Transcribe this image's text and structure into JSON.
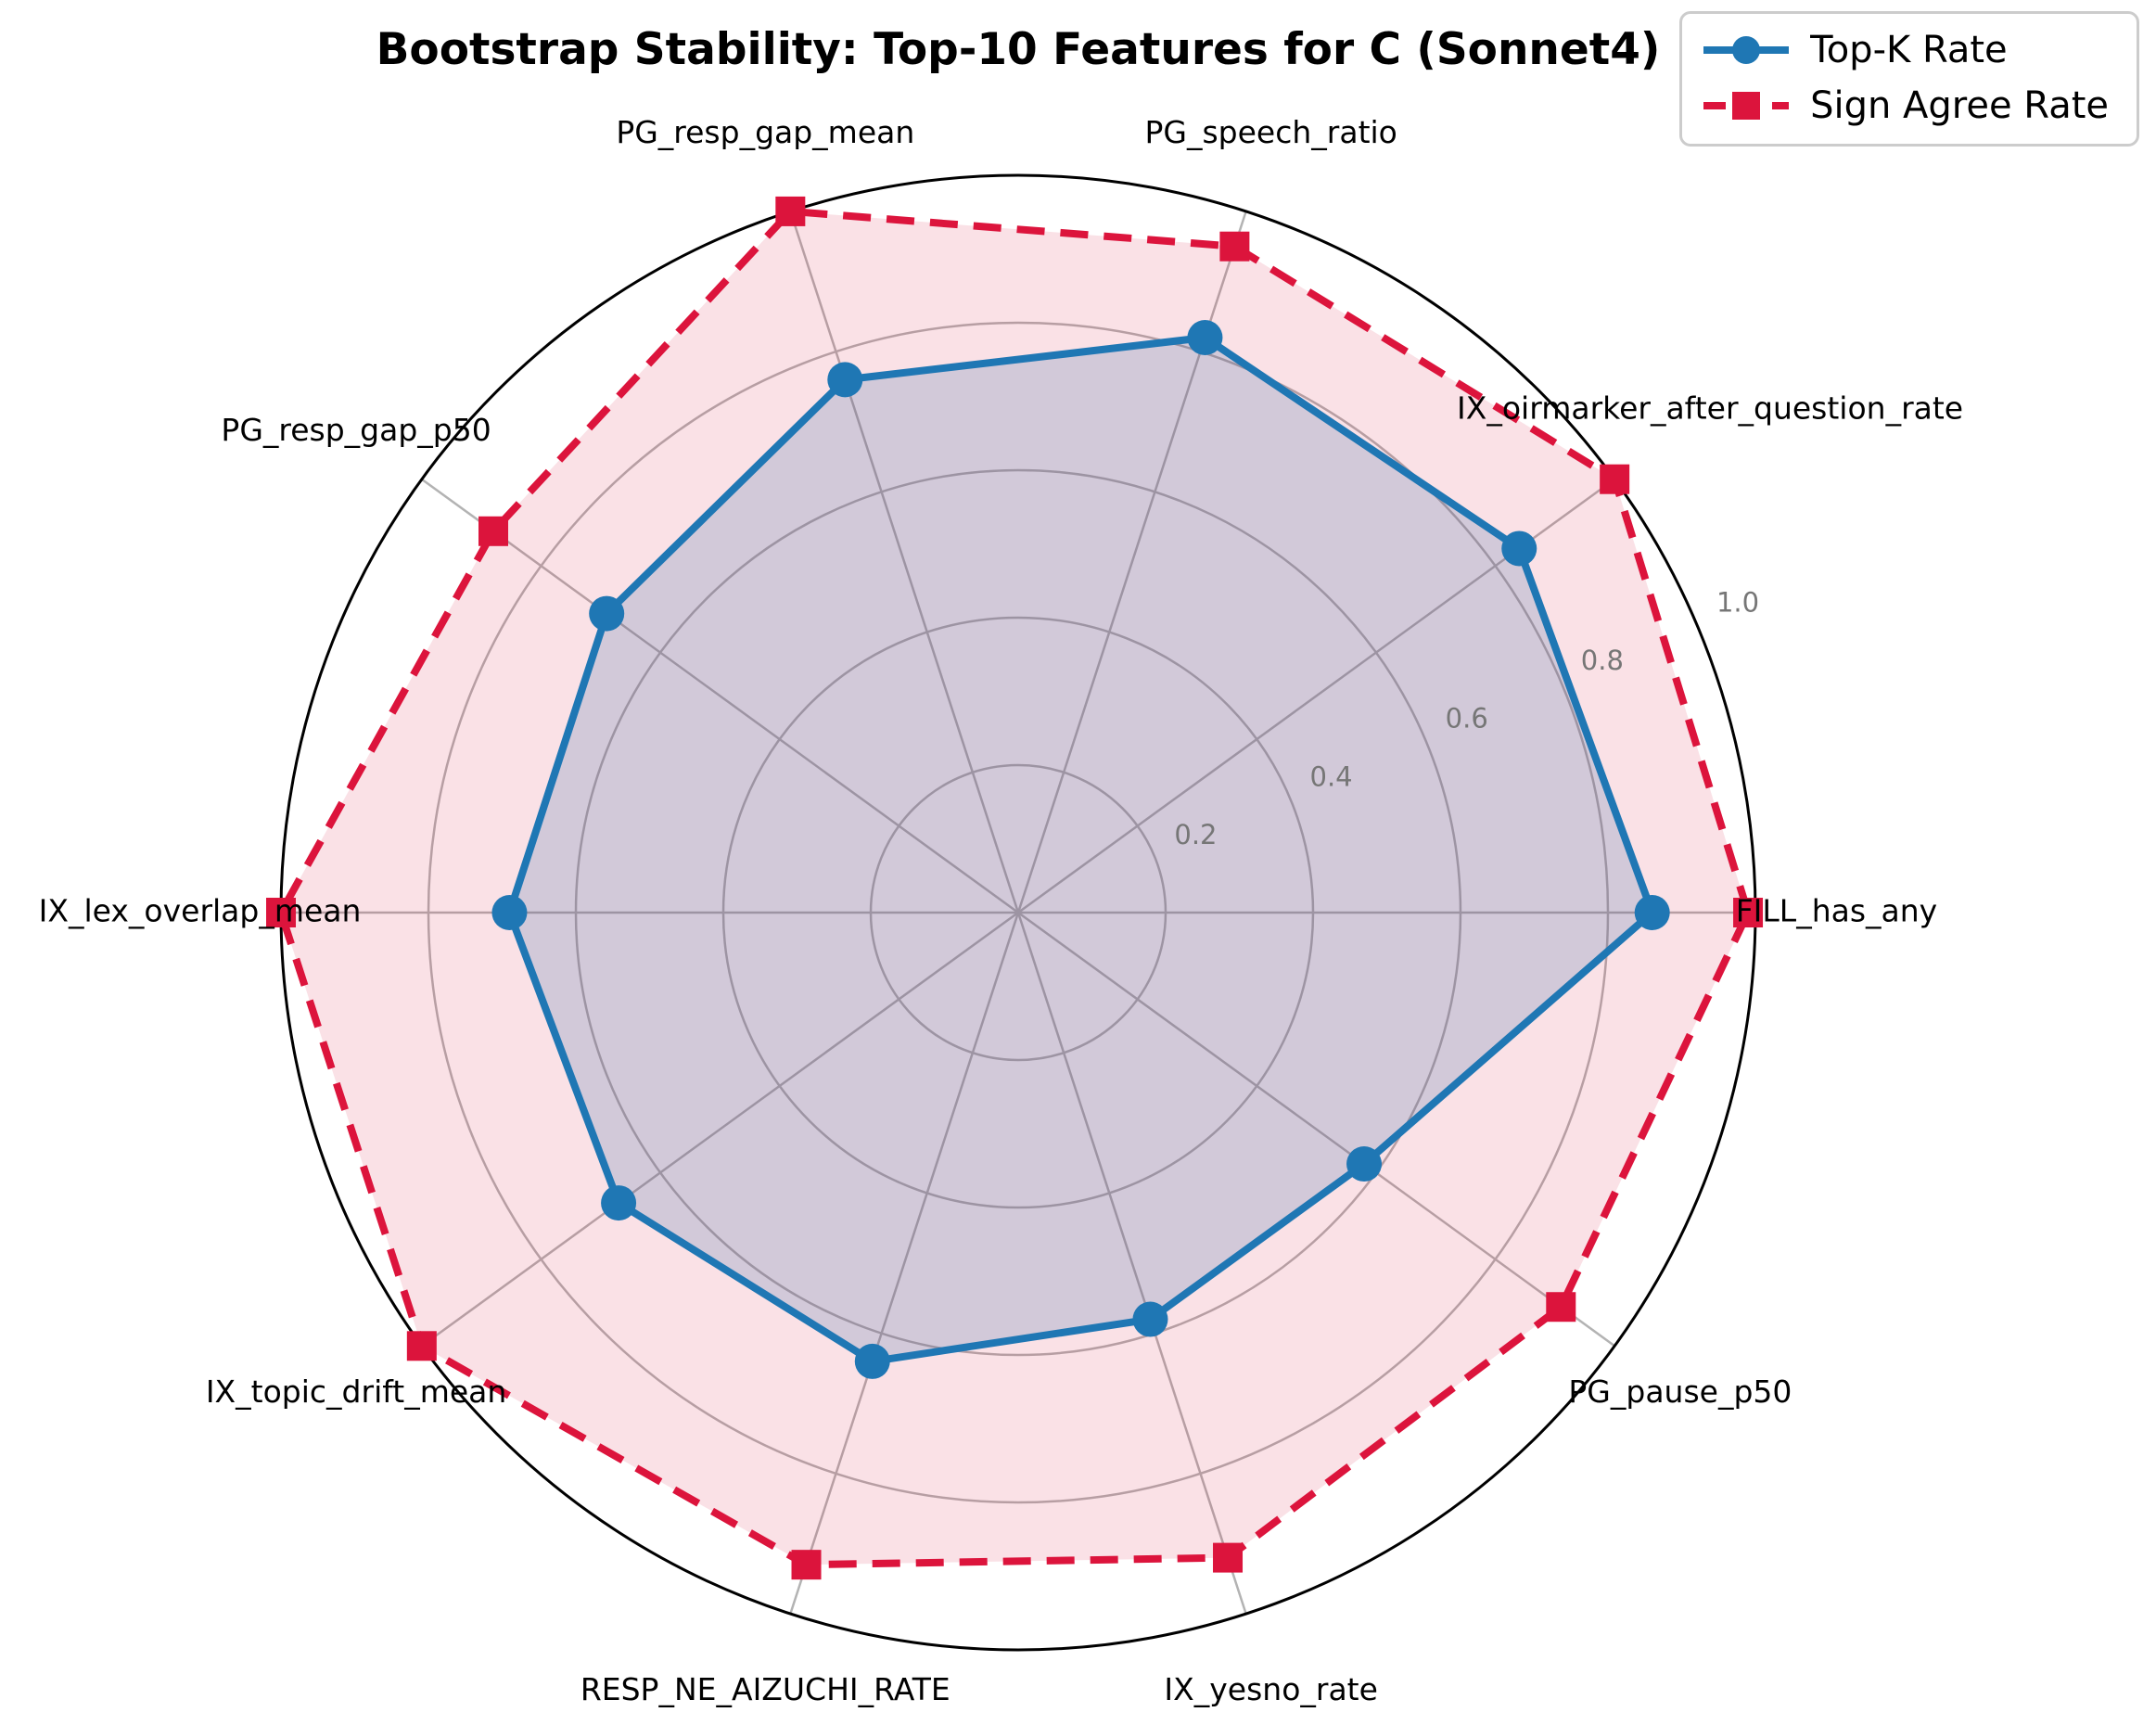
{
  "title": "Bootstrap Stability: Top-10 Features for C (Sonnet4)",
  "legend": {
    "items": [
      {
        "label": "Top-K Rate"
      },
      {
        "label": "Sign Agree Rate"
      }
    ]
  },
  "chart_data": {
    "type": "radar",
    "categories": [
      "FILL_has_any",
      "IX_oirmarker_after_question_rate",
      "PG_speech_ratio",
      "PG_resp_gap_mean",
      "PG_resp_gap_p50",
      "IX_lex_overlap_mean",
      "IX_topic_drift_mean",
      "RESP_NE_AIZUCHI_RATE",
      "IX_yesno_rate",
      "PG_pause_p50"
    ],
    "series": [
      {
        "name": "Top-K Rate",
        "color": "#1f77b4",
        "linestyle": "solid",
        "marker": "circle",
        "values": [
          0.86,
          0.84,
          0.82,
          0.76,
          0.69,
          0.69,
          0.67,
          0.64,
          0.58,
          0.58
        ]
      },
      {
        "name": "Sign Agree Rate",
        "color": "#dc143c",
        "linestyle": "dashed",
        "marker": "square",
        "values": [
          0.99,
          1.0,
          0.95,
          1.0,
          0.88,
          1.0,
          1.0,
          0.93,
          0.92,
          0.91
        ]
      }
    ],
    "radial_ticks": [
      0.2,
      0.4,
      0.6,
      0.8,
      1.0
    ],
    "rlim": [
      0,
      1.0
    ],
    "start_angle_deg": 0,
    "direction": "counterclockwise",
    "grid": true,
    "grid_color": "#b3b3b3",
    "spine_color": "#000000",
    "tick_label_color": "#767676",
    "legend_position": "upper right"
  }
}
